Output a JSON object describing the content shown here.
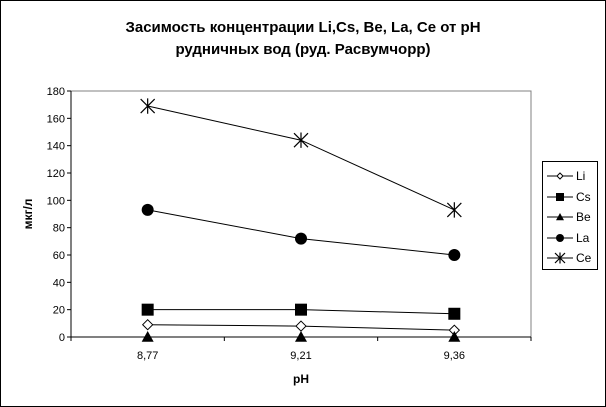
{
  "chart_data": {
    "type": "line",
    "title_line1": "Засимость  концентрации Li,Cs, Be, La, Ce от pH",
    "title_line2": "рудничных вод (руд. Расвумчорр)",
    "xlabel": "pH",
    "ylabel": "мкг/л",
    "categories": [
      "8,77",
      "9,21",
      "9,36"
    ],
    "ylim": [
      0,
      180
    ],
    "yticks": [
      0,
      20,
      40,
      60,
      80,
      100,
      120,
      140,
      160,
      180
    ],
    "legend_position": "right",
    "series": [
      {
        "name": "Li",
        "values": [
          9,
          8,
          5
        ],
        "marker": "diamond-open",
        "color": "#000000"
      },
      {
        "name": "Cs",
        "values": [
          20,
          20,
          17
        ],
        "marker": "square",
        "color": "#000000"
      },
      {
        "name": "Be",
        "values": [
          0,
          0,
          0
        ],
        "marker": "triangle",
        "color": "#000000"
      },
      {
        "name": "La",
        "values": [
          93,
          72,
          60
        ],
        "marker": "circle",
        "color": "#000000"
      },
      {
        "name": "Ce",
        "values": [
          169,
          144,
          93
        ],
        "marker": "star",
        "color": "#000000"
      }
    ]
  }
}
